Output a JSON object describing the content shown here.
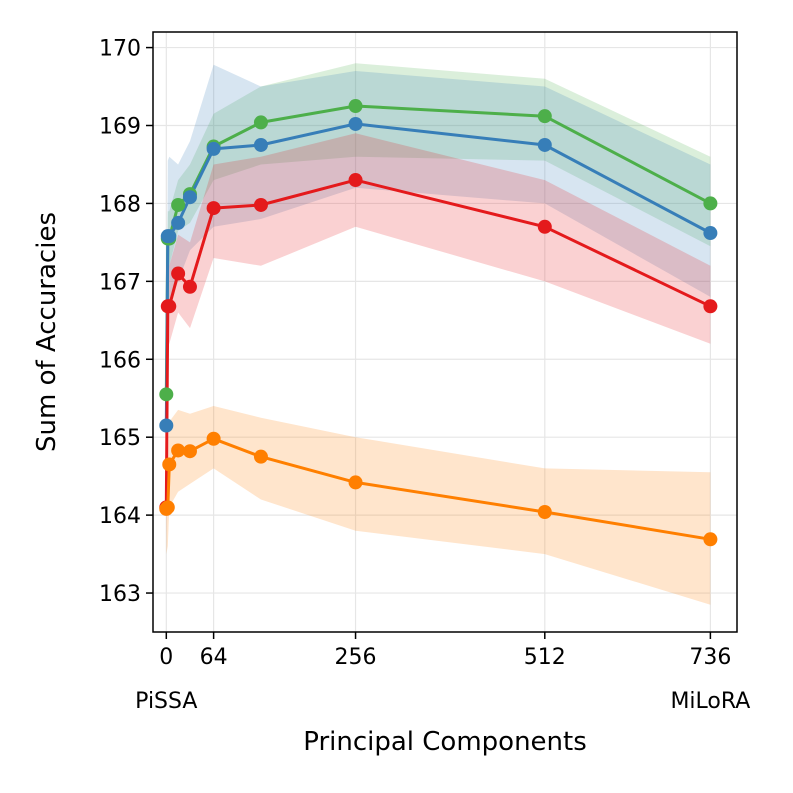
{
  "chart_data": {
    "type": "line",
    "title": "",
    "xlabel": "Principal Components",
    "ylabel": "Sum of Accuracies",
    "xlim": [
      -18,
      772
    ],
    "ylim": [
      162.5,
      170.2
    ],
    "grid": true,
    "legend": "none",
    "xticks": [
      0,
      64,
      256,
      512,
      736
    ],
    "xtick_sublabels": [
      {
        "x": 0,
        "label": "PiSSA"
      },
      {
        "x": 736,
        "label": "MiLoRA"
      }
    ],
    "yticks": [
      163,
      164,
      165,
      166,
      167,
      168,
      169,
      170
    ],
    "colors": {
      "green": "#4daf4a",
      "blue": "#377eb8",
      "red": "#e41a1c",
      "orange": "#ff7f00"
    },
    "series": [
      {
        "color": "#4daf4a",
        "x": [
          0,
          2,
          4,
          16,
          32,
          64,
          128,
          256,
          512,
          736
        ],
        "y": [
          165.55,
          167.55,
          167.55,
          167.98,
          168.12,
          168.73,
          169.04,
          169.25,
          169.12,
          168.0
        ],
        "lower": [
          165.3,
          167.2,
          167.2,
          167.65,
          167.75,
          168.3,
          168.5,
          168.6,
          168.55,
          167.45
        ],
        "upper": [
          165.8,
          167.9,
          167.9,
          168.3,
          168.5,
          169.15,
          169.5,
          169.8,
          169.6,
          168.6
        ]
      },
      {
        "color": "#377eb8",
        "x": [
          0,
          2,
          4,
          16,
          32,
          64,
          128,
          256,
          512,
          736
        ],
        "y": [
          165.15,
          167.58,
          167.58,
          167.75,
          168.08,
          168.7,
          168.75,
          169.02,
          168.75,
          167.62
        ],
        "lower": [
          164.8,
          166.6,
          166.7,
          167.0,
          167.4,
          167.7,
          167.8,
          168.2,
          168.0,
          166.8
        ],
        "upper": [
          165.5,
          168.55,
          168.6,
          168.5,
          168.8,
          169.78,
          169.5,
          169.7,
          169.5,
          168.5
        ]
      },
      {
        "color": "#e41a1c",
        "x": [
          0,
          2,
          4,
          16,
          32,
          64,
          128,
          256,
          512,
          736
        ],
        "y": [
          164.1,
          166.68,
          166.68,
          167.1,
          166.93,
          167.94,
          167.98,
          168.3,
          167.7,
          166.68
        ],
        "lower": [
          163.7,
          166.2,
          166.2,
          166.6,
          166.4,
          167.3,
          167.2,
          167.7,
          167.0,
          166.2
        ],
        "upper": [
          164.5,
          167.2,
          167.2,
          167.6,
          167.5,
          168.5,
          168.6,
          168.9,
          168.3,
          167.2
        ]
      },
      {
        "color": "#ff7f00",
        "x": [
          0,
          2,
          4,
          16,
          32,
          64,
          128,
          256,
          512,
          736
        ],
        "y": [
          164.08,
          164.1,
          164.65,
          164.83,
          164.82,
          164.98,
          164.75,
          164.42,
          164.04,
          163.69
        ],
        "lower": [
          163.5,
          163.6,
          164.1,
          164.3,
          164.4,
          164.6,
          164.2,
          163.8,
          163.5,
          162.85
        ],
        "upper": [
          164.6,
          164.6,
          165.2,
          165.35,
          165.3,
          165.4,
          165.25,
          165.0,
          164.6,
          164.55
        ]
      }
    ]
  }
}
